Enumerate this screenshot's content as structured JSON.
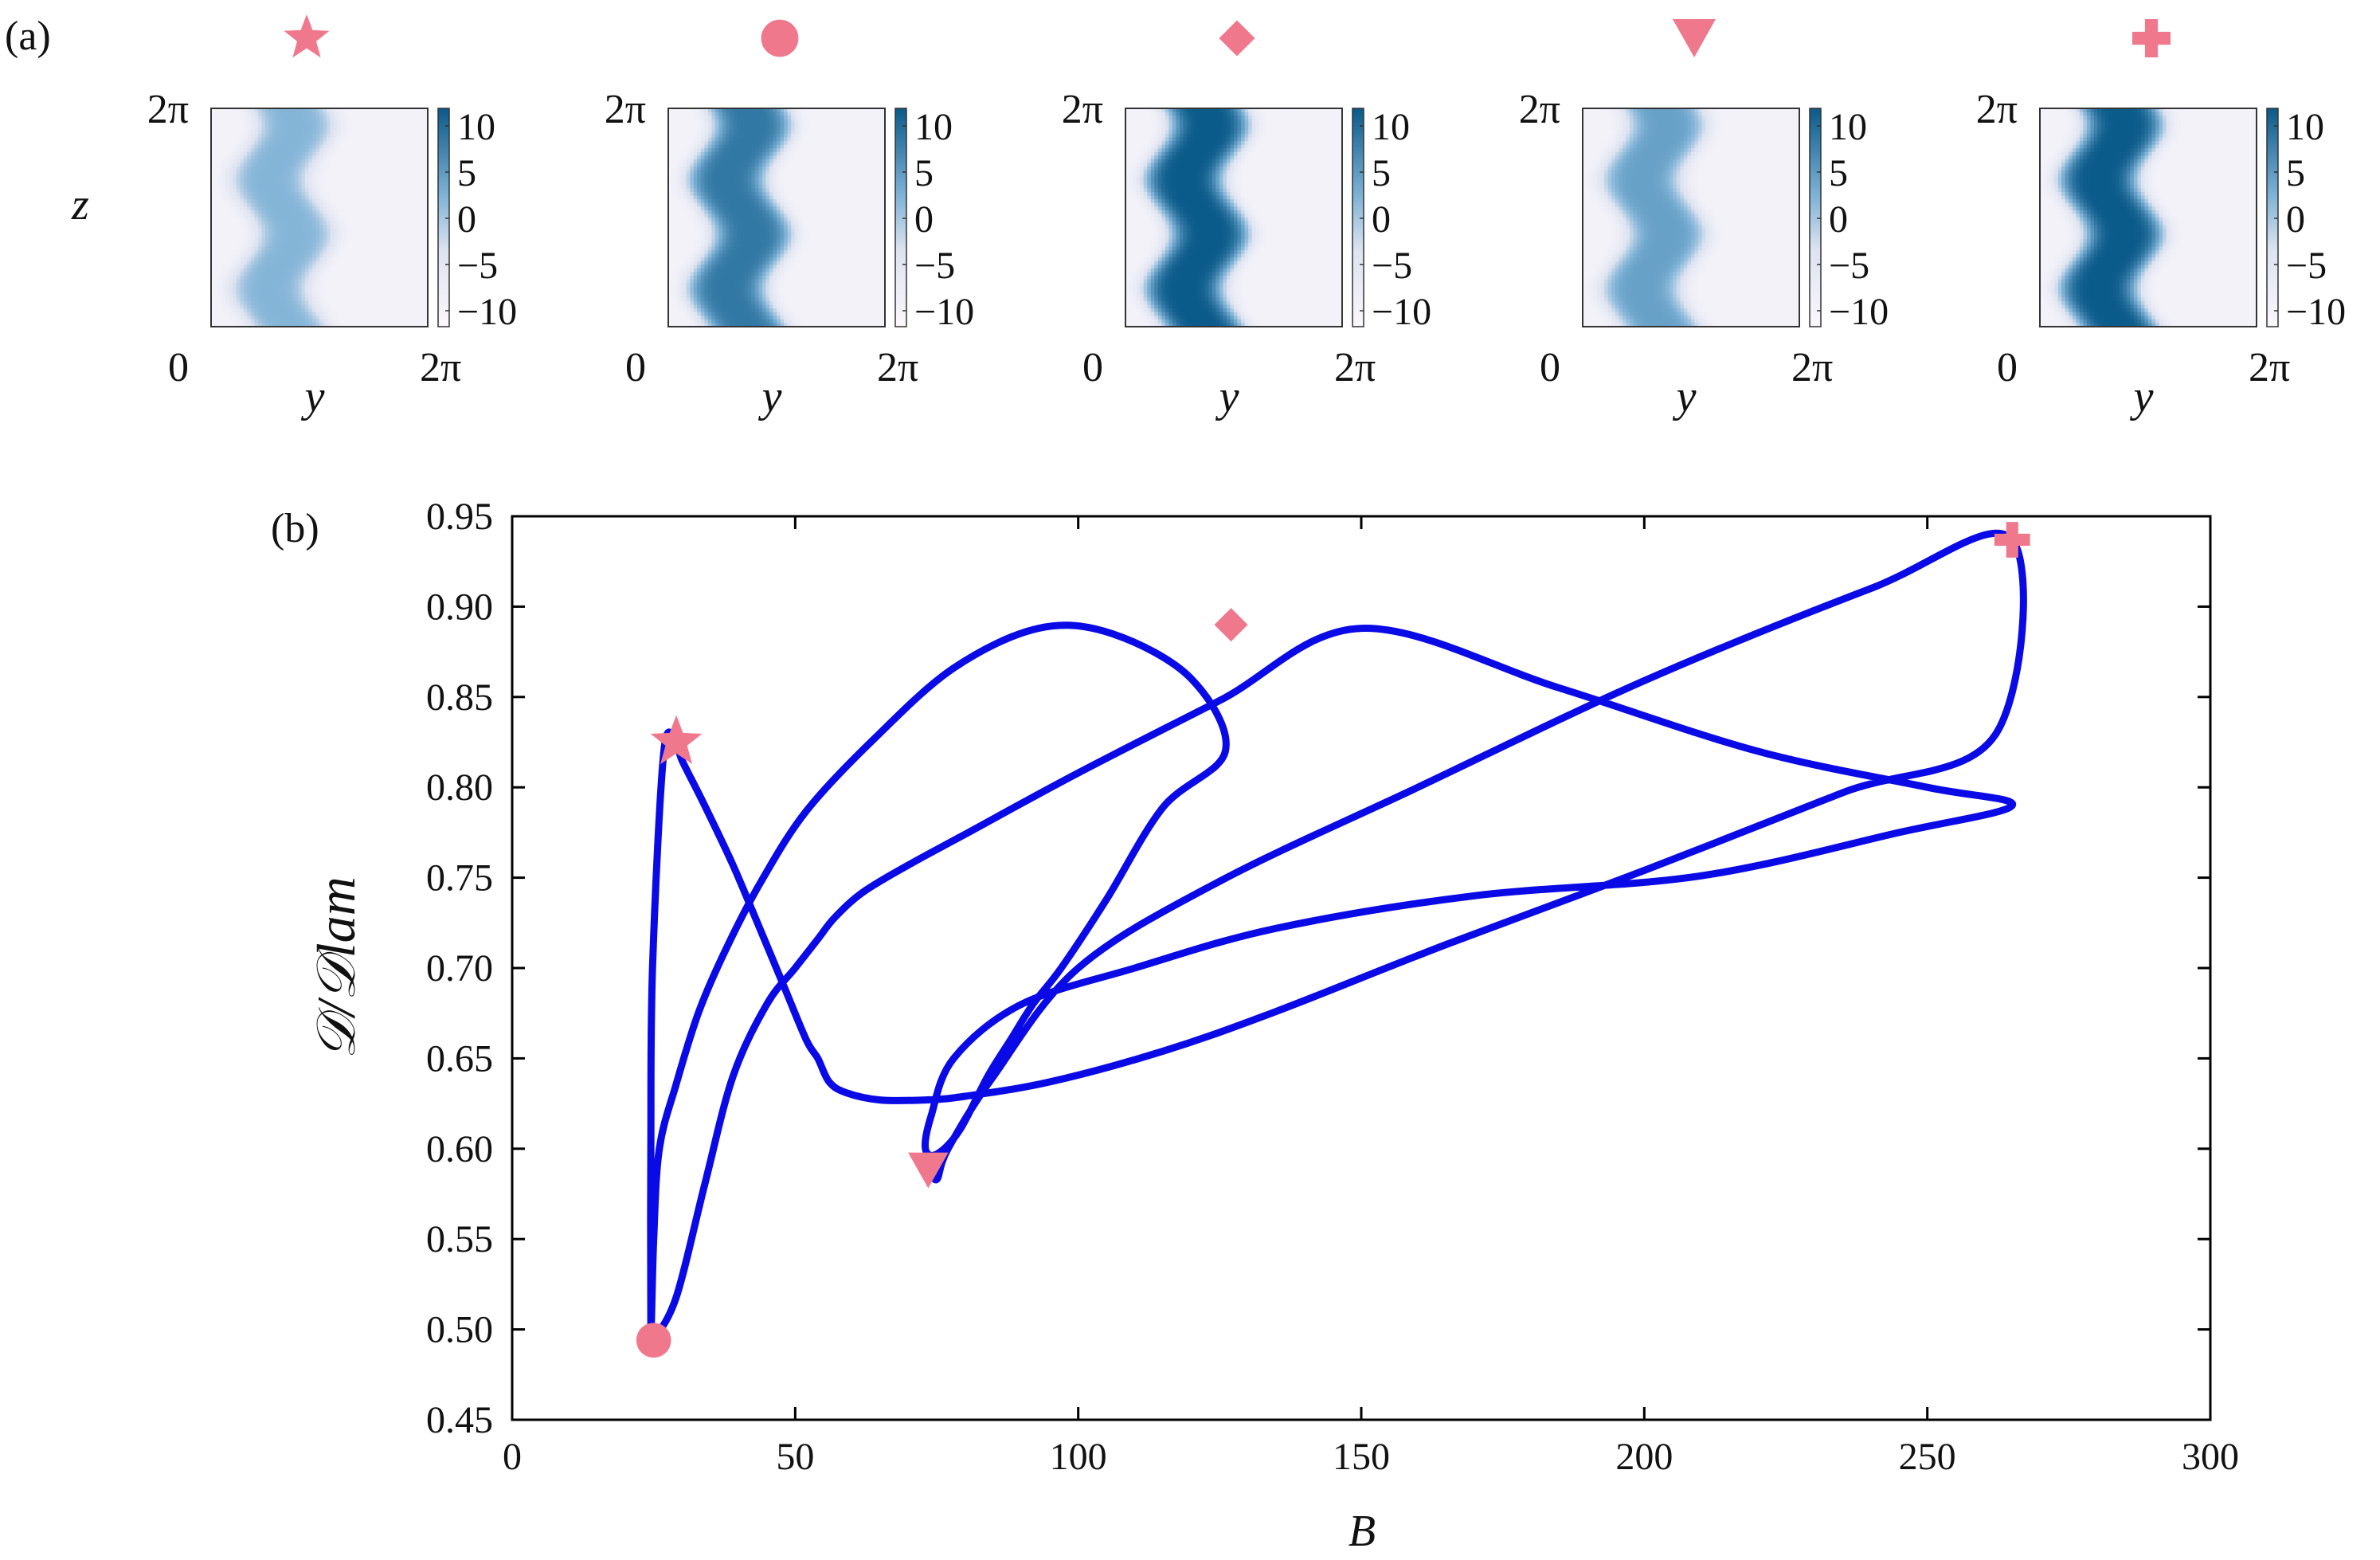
{
  "colors": {
    "curve": "#0a0ae6",
    "marker": "#f0788c",
    "cmap_low": "#f7f2fa",
    "cmap_high": "#0a5a8a"
  },
  "panel_a": {
    "label": "(a)",
    "ylabel": "z",
    "xlabel": "y",
    "x_start": "0",
    "x_end": "2π",
    "y_top": "2π",
    "colorbar_ticks": [
      "10",
      "5",
      "0",
      "−5",
      "−10"
    ],
    "maps": [
      {
        "marker": "star",
        "amp": 0.55
      },
      {
        "marker": "circle",
        "amp": 0.85
      },
      {
        "marker": "diamond",
        "amp": 1.0
      },
      {
        "marker": "triangle-down",
        "amp": 0.65
      },
      {
        "marker": "plus",
        "amp": 1.0
      }
    ]
  },
  "chart_data": {
    "type": "line",
    "panel_label": "(b)",
    "xlabel": "B",
    "ylabel": "𝒟/𝒟lam",
    "xlim": [
      0,
      300
    ],
    "ylim": [
      0.45,
      0.95
    ],
    "x_ticks": [
      "0",
      "50",
      "100",
      "150",
      "200",
      "250",
      "300"
    ],
    "y_ticks": [
      "0.45",
      "0.50",
      "0.55",
      "0.60",
      "0.65",
      "0.70",
      "0.75",
      "0.80",
      "0.85",
      "0.90",
      "0.95"
    ],
    "series": [
      {
        "x": [
          25,
          29,
          34,
          39,
          45,
          50,
          54,
          57,
          62,
          70,
          80,
          100,
          125,
          150,
          185,
          220,
          250,
          265,
          245,
          210,
          170,
          135,
          110,
          90,
          78,
          74,
          73,
          75,
          79,
          84,
          88,
          92,
          97,
          105,
          115,
          126,
          120,
          106,
          93,
          78,
          64,
          52,
          44,
          38,
          33,
          29,
          26,
          25,
          24.5,
          24.5,
          24.8,
          26.8,
          29,
          30,
          34,
          39,
          44,
          48,
          52,
          54,
          56,
          59,
          65,
          73,
          80,
          95,
          115,
          135,
          165,
          200,
          235,
          262,
          265,
          240,
          200,
          160,
          125,
          100,
          85,
          77,
          75,
          73.5,
          74
        ],
        "y": [
          0.494,
          0.518,
          0.58,
          0.64,
          0.68,
          0.7,
          0.716,
          0.728,
          0.742,
          0.757,
          0.774,
          0.808,
          0.848,
          0.888,
          0.855,
          0.82,
          0.8,
          0.79,
          0.775,
          0.751,
          0.74,
          0.722,
          0.7,
          0.68,
          0.65,
          0.618,
          0.6,
          0.597,
          0.61,
          0.64,
          0.66,
          0.68,
          0.7,
          0.738,
          0.789,
          0.82,
          0.86,
          0.885,
          0.888,
          0.866,
          0.827,
          0.787,
          0.748,
          0.712,
          0.676,
          0.636,
          0.6,
          0.55,
          0.5,
          0.6,
          0.7,
          0.82,
          0.824,
          0.815,
          0.79,
          0.757,
          0.72,
          0.69,
          0.66,
          0.65,
          0.637,
          0.631,
          0.627,
          0.627,
          0.629,
          0.637,
          0.654,
          0.676,
          0.713,
          0.754,
          0.797,
          0.829,
          0.937,
          0.91,
          0.859,
          0.8,
          0.748,
          0.7,
          0.64,
          0.6,
          0.583,
          0.59,
          0.588
        ]
      }
    ],
    "markers": [
      {
        "shape": "star",
        "x": 29,
        "y": 0.825
      },
      {
        "shape": "circle",
        "x": 25,
        "y": 0.494
      },
      {
        "shape": "diamond",
        "x": 127,
        "y": 0.89
      },
      {
        "shape": "triangle-down",
        "x": 73.5,
        "y": 0.588
      },
      {
        "shape": "plus",
        "x": 265,
        "y": 0.937
      }
    ],
    "grid": false
  }
}
